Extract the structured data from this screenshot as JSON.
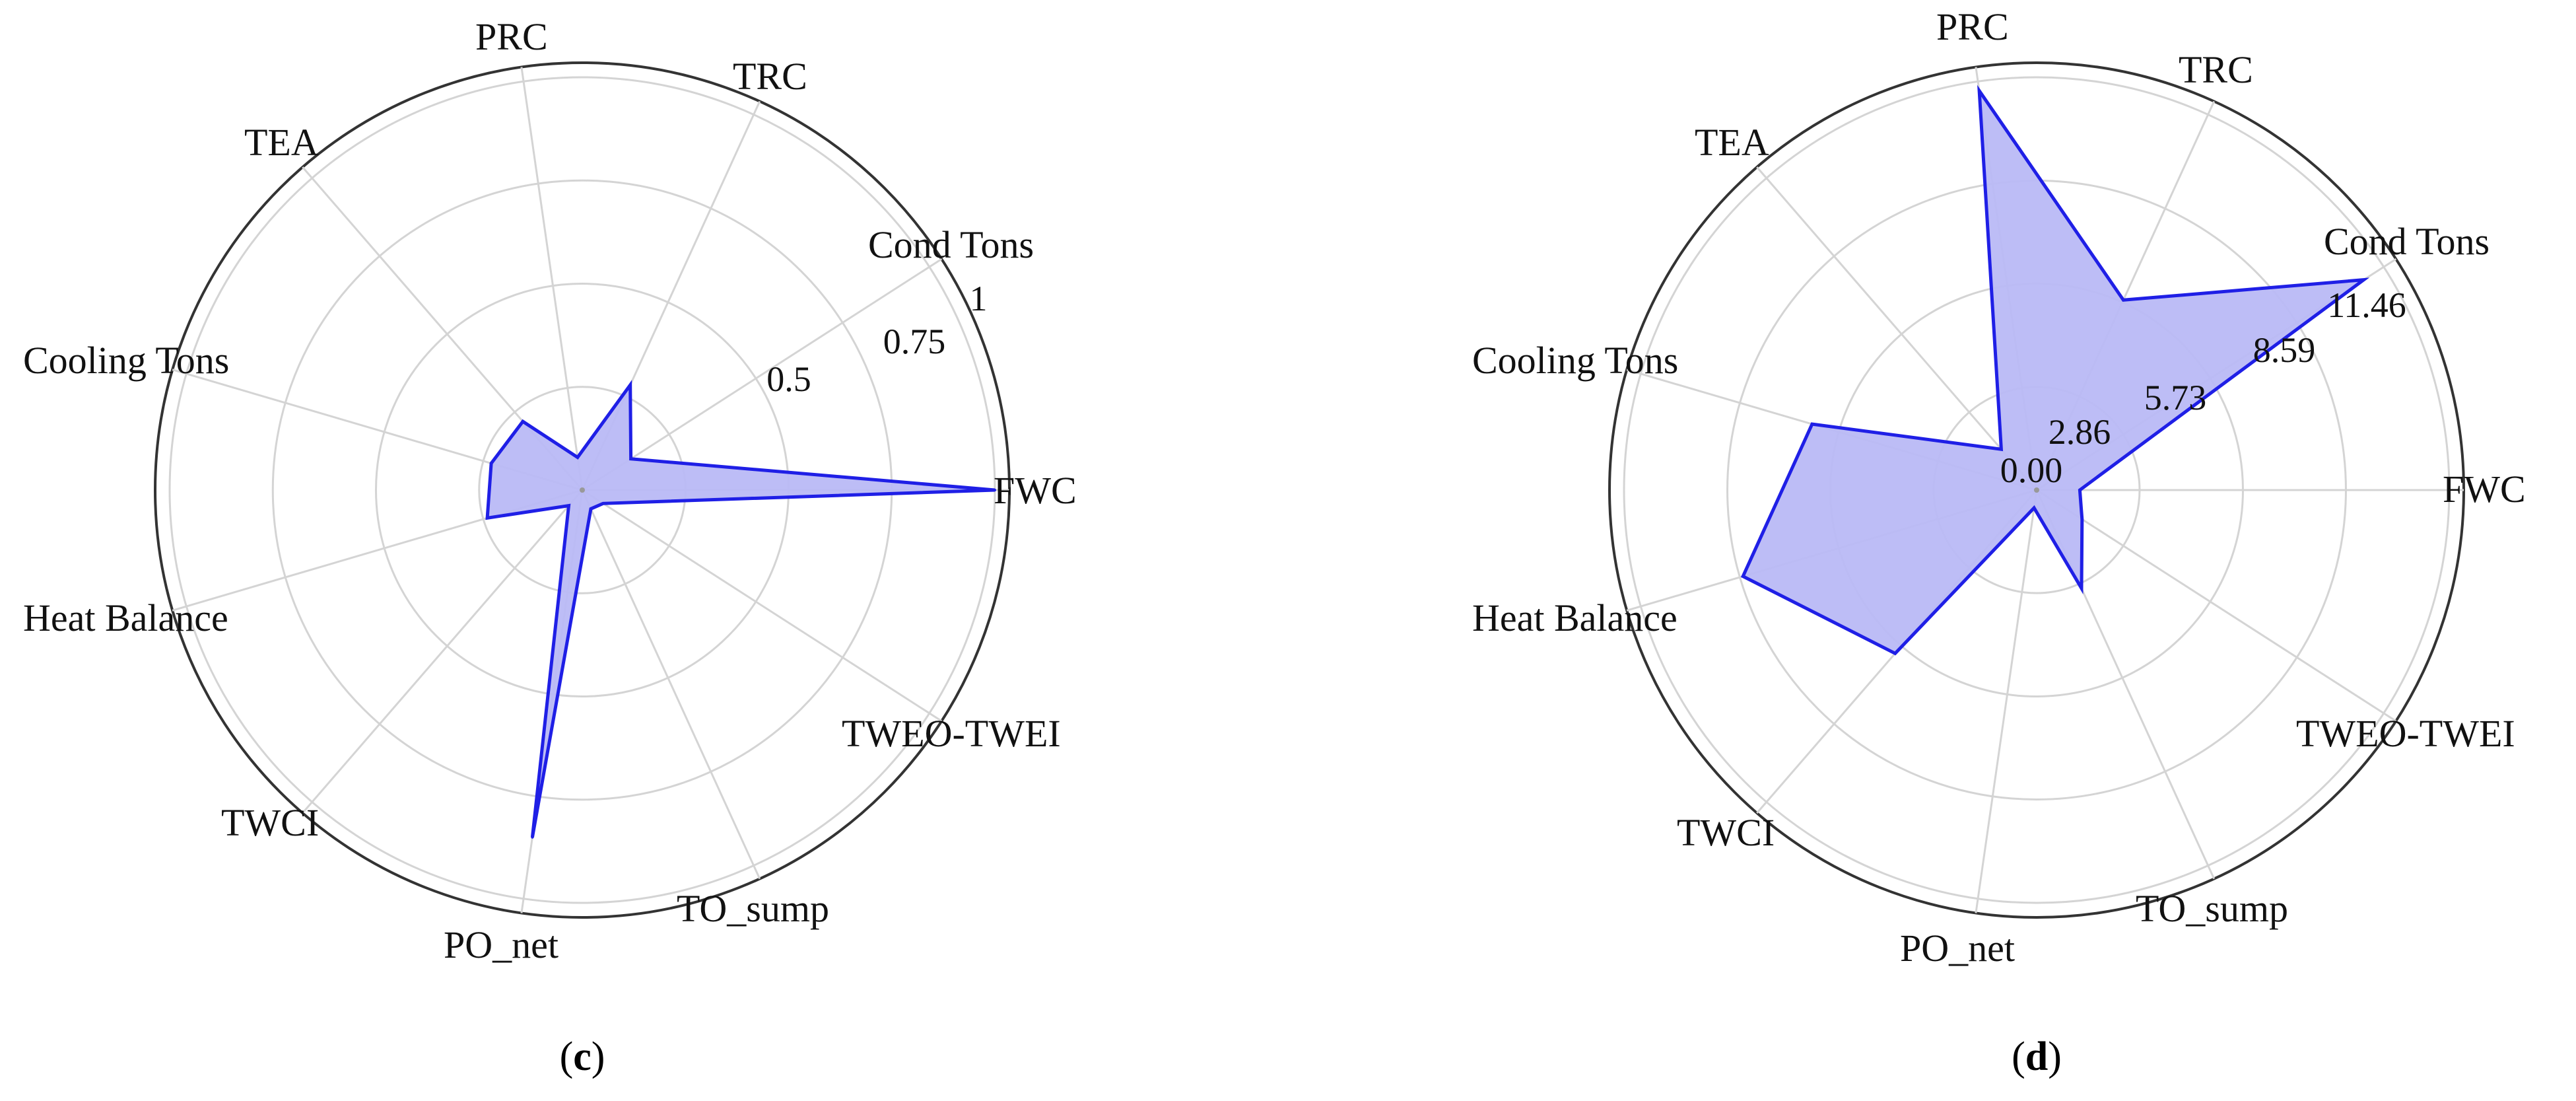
{
  "colors": {
    "series": "#1f1fe6",
    "fill": "#b9b9f5",
    "grid": "#d4d4d4",
    "frame": "#333333"
  },
  "chart_data": [
    {
      "type": "radar",
      "panel_label": "c",
      "categories": [
        "FWC",
        "Cond Tons",
        "TRC",
        "PRC",
        "TEA",
        "Cooling Tons",
        "Heat Balance",
        "TWCI",
        "PO_net",
        "TO_sump",
        "TWEO-TWEI"
      ],
      "rlim": [
        0,
        1
      ],
      "rticks": [
        0.25,
        0.5,
        0.75,
        1
      ],
      "rtick_labels": [
        "",
        "0.5",
        "0.75",
        "1"
      ],
      "series": [
        {
          "values": [
            1.0,
            0.14,
            0.28,
            0.08,
            0.22,
            0.23,
            0.24,
            0.05,
            0.85,
            0.05,
            0.06
          ]
        }
      ],
      "grid": true
    },
    {
      "type": "radar",
      "panel_label": "d",
      "categories": [
        "FWC",
        "Cond Tons",
        "TRC",
        "PRC",
        "TEA",
        "Cooling Tons",
        "Heat Balance",
        "TWCI",
        "PO_net",
        "TO_sump",
        "TWEO-TWEI"
      ],
      "rlim": [
        0,
        11.46
      ],
      "rticks": [
        0.0,
        2.86,
        5.73,
        8.59,
        11.46
      ],
      "rtick_labels": [
        "0.00",
        "2.86",
        "5.73",
        "8.59",
        "11.46"
      ],
      "series": [
        {
          "values": [
            1.2,
            10.8,
            5.8,
            11.2,
            1.5,
            6.5,
            8.5,
            6.0,
            0.5,
            3.0,
            1.5
          ]
        }
      ],
      "grid": true
    }
  ]
}
